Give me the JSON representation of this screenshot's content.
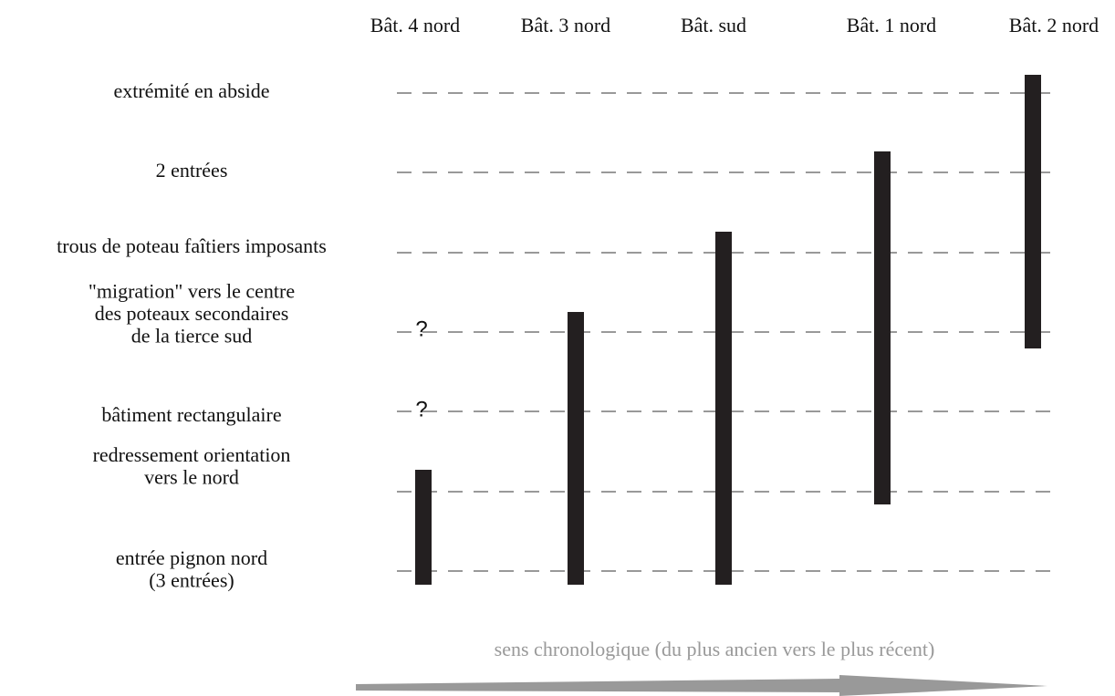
{
  "columns": [
    "Bât. 4 nord",
    "Bât. 3 nord",
    "Bât. sud",
    "Bât. 1 nord",
    "Bât. 2 nord"
  ],
  "rows": [
    {
      "lines": [
        "extrémité en abside"
      ]
    },
    {
      "lines": [
        "2 entrées"
      ]
    },
    {
      "lines": [
        "trous de poteau faîtiers imposants"
      ]
    },
    {
      "lines": [
        "\"migration\" vers le centre",
        "des poteaux secondaires",
        "de la tierce sud"
      ]
    },
    {
      "lines": [
        "bâtiment rectangulaire"
      ]
    },
    {
      "lines": [
        "redressement orientation",
        "vers le nord"
      ]
    },
    {
      "lines": [
        "entrée pignon nord",
        "(3 entrées)"
      ]
    }
  ],
  "uncertain_marks": [
    "?",
    "?"
  ],
  "caption": "sens chronologique (du plus ancien vers le plus récent)"
}
